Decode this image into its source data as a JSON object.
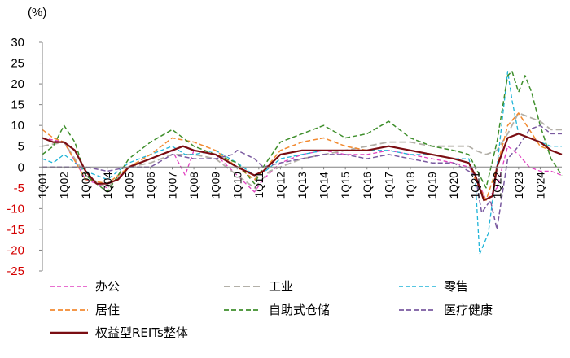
{
  "chart_data": {
    "type": "line",
    "unit_label": "(%)",
    "ylim": [
      -25,
      30
    ],
    "yticks": [
      30,
      25,
      20,
      15,
      10,
      5,
      0,
      -5,
      -10,
      -15,
      -20,
      -25
    ],
    "categories": [
      "1Q01",
      "1Q02",
      "1Q03",
      "1Q04",
      "1Q05",
      "1Q06",
      "1Q07",
      "1Q08",
      "1Q09",
      "1Q10",
      "1Q11",
      "1Q12",
      "1Q13",
      "1Q14",
      "1Q15",
      "1Q16",
      "1Q17",
      "1Q18",
      "1Q19",
      "1Q20",
      "1Q21",
      "1Q22",
      "1Q23",
      "1Q24"
    ],
    "x_start": 2001.0,
    "x_end": 2025.0,
    "negative_tick_color": "#d40000",
    "series": [
      {
        "name": "办公",
        "color": "#e040c0",
        "dash": "5,3",
        "width": 1.3,
        "points": [
          [
            2001.0,
            7
          ],
          [
            2002.0,
            6
          ],
          [
            2003.0,
            -3
          ],
          [
            2004.0,
            -5
          ],
          [
            2005.0,
            0
          ],
          [
            2006.0,
            2
          ],
          [
            2007.0,
            4
          ],
          [
            2007.6,
            -2
          ],
          [
            2008.0,
            4
          ],
          [
            2009.0,
            3
          ],
          [
            2010.0,
            -2
          ],
          [
            2010.8,
            -6
          ],
          [
            2011.2,
            -3
          ],
          [
            2012.0,
            1
          ],
          [
            2013.0,
            3
          ],
          [
            2014.0,
            4
          ],
          [
            2015.0,
            3
          ],
          [
            2016.0,
            3
          ],
          [
            2017.0,
            4
          ],
          [
            2018.0,
            3
          ],
          [
            2019.0,
            2
          ],
          [
            2020.0,
            1
          ],
          [
            2020.7,
            0
          ],
          [
            2021.0,
            -2
          ],
          [
            2021.5,
            -8
          ],
          [
            2022.0,
            -5
          ],
          [
            2022.5,
            5
          ],
          [
            2023.0,
            3
          ],
          [
            2023.5,
            0
          ],
          [
            2024.0,
            -1
          ],
          [
            2024.5,
            -1
          ],
          [
            2025.0,
            -2
          ]
        ]
      },
      {
        "name": "工业",
        "color": "#b3b0a8",
        "dash": "8,4",
        "width": 1.8,
        "points": [
          [
            2001.0,
            5
          ],
          [
            2002.0,
            6
          ],
          [
            2003.0,
            -2
          ],
          [
            2004.0,
            -5
          ],
          [
            2005.0,
            0
          ],
          [
            2006.0,
            1
          ],
          [
            2007.0,
            3
          ],
          [
            2008.0,
            3
          ],
          [
            2009.0,
            2
          ],
          [
            2010.0,
            -2
          ],
          [
            2010.8,
            -5
          ],
          [
            2011.5,
            -1
          ],
          [
            2012.0,
            0
          ],
          [
            2013.0,
            2
          ],
          [
            2014.0,
            3
          ],
          [
            2015.0,
            4
          ],
          [
            2016.0,
            5
          ],
          [
            2017.0,
            6
          ],
          [
            2018.0,
            6
          ],
          [
            2019.0,
            5
          ],
          [
            2020.0,
            5
          ],
          [
            2020.7,
            5
          ],
          [
            2021.0,
            4
          ],
          [
            2021.5,
            3
          ],
          [
            2022.0,
            4
          ],
          [
            2022.5,
            8
          ],
          [
            2023.0,
            13
          ],
          [
            2023.5,
            12
          ],
          [
            2024.0,
            11
          ],
          [
            2024.5,
            9
          ],
          [
            2025.0,
            9
          ]
        ]
      },
      {
        "name": "零售",
        "color": "#1fb4d8",
        "dash": "5,3",
        "width": 1.3,
        "points": [
          [
            2001.0,
            2
          ],
          [
            2001.5,
            1
          ],
          [
            2002.0,
            3
          ],
          [
            2003.0,
            -1
          ],
          [
            2004.0,
            -3
          ],
          [
            2005.0,
            1
          ],
          [
            2006.0,
            3
          ],
          [
            2007.0,
            5
          ],
          [
            2007.6,
            3
          ],
          [
            2008.0,
            3
          ],
          [
            2009.0,
            4
          ],
          [
            2010.0,
            1
          ],
          [
            2010.8,
            -2
          ],
          [
            2011.3,
            -1
          ],
          [
            2012.0,
            2
          ],
          [
            2013.0,
            3
          ],
          [
            2014.0,
            4
          ],
          [
            2015.0,
            4
          ],
          [
            2016.0,
            4
          ],
          [
            2017.0,
            4
          ],
          [
            2018.0,
            3
          ],
          [
            2019.0,
            3
          ],
          [
            2020.0,
            2
          ],
          [
            2020.7,
            2
          ],
          [
            2021.0,
            -3
          ],
          [
            2021.2,
            -21
          ],
          [
            2021.6,
            -16
          ],
          [
            2022.0,
            0
          ],
          [
            2022.5,
            23
          ],
          [
            2022.7,
            16
          ],
          [
            2023.0,
            8
          ],
          [
            2023.5,
            7
          ],
          [
            2024.0,
            6
          ],
          [
            2024.5,
            5
          ],
          [
            2025.0,
            5
          ]
        ]
      },
      {
        "name": "居住",
        "color": "#f28a30",
        "dash": "6,3",
        "width": 1.5,
        "points": [
          [
            2001.0,
            9
          ],
          [
            2001.5,
            7
          ],
          [
            2002.0,
            6
          ],
          [
            2003.0,
            -3
          ],
          [
            2004.0,
            -4
          ],
          [
            2005.0,
            0
          ],
          [
            2006.0,
            3
          ],
          [
            2007.0,
            7
          ],
          [
            2008.0,
            6
          ],
          [
            2009.0,
            4
          ],
          [
            2010.0,
            0
          ],
          [
            2010.8,
            -3
          ],
          [
            2011.2,
            -1
          ],
          [
            2012.0,
            4
          ],
          [
            2013.0,
            6
          ],
          [
            2014.0,
            7
          ],
          [
            2015.0,
            5
          ],
          [
            2016.0,
            4
          ],
          [
            2017.0,
            5
          ],
          [
            2018.0,
            4
          ],
          [
            2019.0,
            3
          ],
          [
            2020.0,
            2
          ],
          [
            2020.7,
            1
          ],
          [
            2021.0,
            -3
          ],
          [
            2021.5,
            -8
          ],
          [
            2022.0,
            0
          ],
          [
            2022.5,
            10
          ],
          [
            2023.0,
            13
          ],
          [
            2023.5,
            9
          ],
          [
            2024.0,
            5
          ],
          [
            2024.5,
            4
          ],
          [
            2025.0,
            3
          ]
        ]
      },
      {
        "name": "自助式仓储",
        "color": "#3f8f2c",
        "dash": "6,3",
        "width": 1.5,
        "points": [
          [
            2001.0,
            3
          ],
          [
            2001.5,
            5
          ],
          [
            2002.0,
            10
          ],
          [
            2002.5,
            6
          ],
          [
            2003.0,
            -2
          ],
          [
            2004.0,
            -6
          ],
          [
            2005.0,
            2
          ],
          [
            2006.0,
            6
          ],
          [
            2007.0,
            9
          ],
          [
            2007.5,
            7
          ],
          [
            2008.0,
            5
          ],
          [
            2009.0,
            3
          ],
          [
            2010.0,
            1
          ],
          [
            2010.8,
            -4
          ],
          [
            2011.2,
            0
          ],
          [
            2012.0,
            6
          ],
          [
            2013.0,
            8
          ],
          [
            2014.0,
            10
          ],
          [
            2015.0,
            7
          ],
          [
            2016.0,
            8
          ],
          [
            2017.0,
            11
          ],
          [
            2018.0,
            7
          ],
          [
            2019.0,
            5
          ],
          [
            2020.0,
            4
          ],
          [
            2020.7,
            3
          ],
          [
            2021.0,
            0
          ],
          [
            2021.5,
            -5
          ],
          [
            2022.0,
            6
          ],
          [
            2022.5,
            22
          ],
          [
            2022.7,
            23
          ],
          [
            2023.0,
            18
          ],
          [
            2023.3,
            22
          ],
          [
            2023.6,
            18
          ],
          [
            2024.0,
            10
          ],
          [
            2024.5,
            2
          ],
          [
            2025.0,
            -2
          ]
        ]
      },
      {
        "name": "医疗健康",
        "color": "#7a5aa0",
        "dash": "6,3",
        "width": 1.5,
        "points": [
          [
            2001.0,
            0
          ],
          [
            2002.0,
            0
          ],
          [
            2003.0,
            0
          ],
          [
            2004.0,
            -1
          ],
          [
            2005.0,
            0
          ],
          [
            2006.0,
            0
          ],
          [
            2007.0,
            3
          ],
          [
            2008.0,
            2
          ],
          [
            2009.0,
            2
          ],
          [
            2009.8,
            3
          ],
          [
            2010.0,
            4
          ],
          [
            2010.8,
            2
          ],
          [
            2011.2,
            0
          ],
          [
            2012.0,
            1
          ],
          [
            2013.0,
            2
          ],
          [
            2014.0,
            3
          ],
          [
            2015.0,
            3
          ],
          [
            2016.0,
            2
          ],
          [
            2017.0,
            3
          ],
          [
            2018.0,
            2
          ],
          [
            2019.0,
            1
          ],
          [
            2020.0,
            1
          ],
          [
            2020.7,
            -1
          ],
          [
            2021.0,
            -2
          ],
          [
            2021.3,
            -11
          ],
          [
            2021.7,
            -8
          ],
          [
            2022.0,
            -15
          ],
          [
            2022.5,
            2
          ],
          [
            2023.0,
            5
          ],
          [
            2023.5,
            9
          ],
          [
            2024.0,
            10
          ],
          [
            2024.5,
            8
          ],
          [
            2025.0,
            8
          ]
        ]
      },
      {
        "name": "权益型REITs整体",
        "color": "#7a0d12",
        "dash": "",
        "width": 2.2,
        "points": [
          [
            2001.0,
            7
          ],
          [
            2001.5,
            6
          ],
          [
            2002.0,
            6
          ],
          [
            2002.5,
            4
          ],
          [
            2003.0,
            -1
          ],
          [
            2003.5,
            -4
          ],
          [
            2004.0,
            -4
          ],
          [
            2004.5,
            -3
          ],
          [
            2005.0,
            0
          ],
          [
            2006.0,
            2
          ],
          [
            2007.0,
            4
          ],
          [
            2007.5,
            5
          ],
          [
            2008.0,
            4
          ],
          [
            2009.0,
            3
          ],
          [
            2010.0,
            0
          ],
          [
            2010.8,
            -2
          ],
          [
            2011.2,
            -1
          ],
          [
            2012.0,
            3
          ],
          [
            2013.0,
            4
          ],
          [
            2014.0,
            4
          ],
          [
            2015.0,
            4
          ],
          [
            2016.0,
            4
          ],
          [
            2017.0,
            5
          ],
          [
            2018.0,
            4
          ],
          [
            2019.0,
            3
          ],
          [
            2020.0,
            2
          ],
          [
            2020.7,
            1
          ],
          [
            2021.0,
            -2
          ],
          [
            2021.4,
            -8
          ],
          [
            2021.8,
            -7
          ],
          [
            2022.0,
            0
          ],
          [
            2022.5,
            7
          ],
          [
            2023.0,
            8
          ],
          [
            2023.5,
            7
          ],
          [
            2024.0,
            6
          ],
          [
            2024.5,
            4
          ],
          [
            2025.0,
            3
          ]
        ]
      }
    ]
  }
}
